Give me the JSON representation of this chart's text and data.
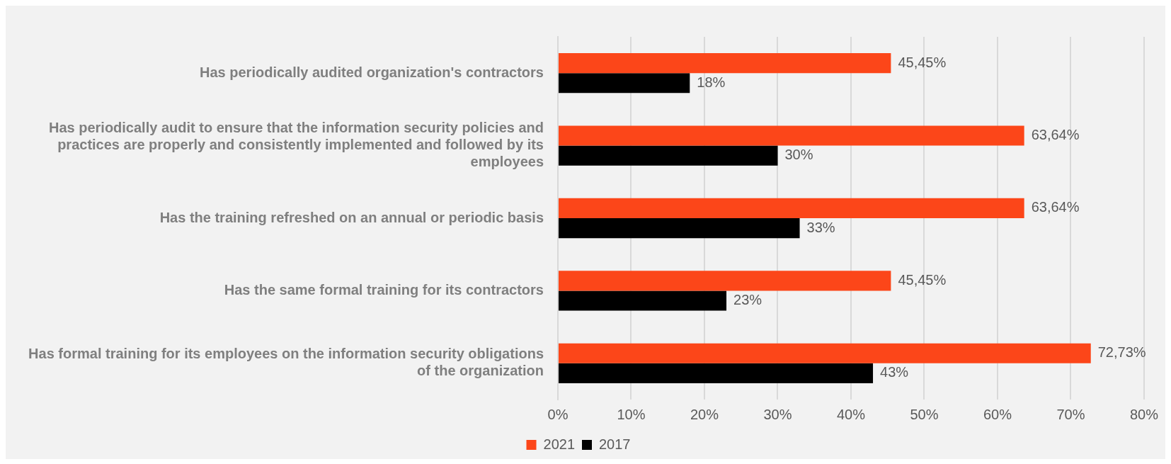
{
  "chart_data": {
    "type": "bar",
    "orientation": "horizontal",
    "categories": [
      "Has periodically audited organization's contractors",
      "Has periodically audit to ensure that the information security policies and practices are properly and consistently implemented and followed by its employees",
      "Has the training refreshed on an annual or periodic basis",
      "Has the same formal training for its contractors",
      "Has formal training for its employees on the information security obligations of the organization"
    ],
    "series": [
      {
        "name": "2021",
        "color": "#fc4619",
        "values": [
          45.45,
          63.64,
          63.64,
          45.45,
          72.73
        ],
        "value_labels": [
          "45,45%",
          "63,64%",
          "63,64%",
          "45,45%",
          "72,73%"
        ]
      },
      {
        "name": "2017",
        "color": "#000000",
        "values": [
          18,
          30,
          33,
          23,
          43
        ],
        "value_labels": [
          "18%",
          "30%",
          "33%",
          "23%",
          "43%"
        ]
      }
    ],
    "xlim": [
      0,
      80
    ],
    "xticks": [
      {
        "value": 0,
        "label": "0%"
      },
      {
        "value": 10,
        "label": "10%"
      },
      {
        "value": 20,
        "label": "20%"
      },
      {
        "value": 30,
        "label": "30%"
      },
      {
        "value": 40,
        "label": "40%"
      },
      {
        "value": 50,
        "label": "50%"
      },
      {
        "value": 60,
        "label": "60%"
      },
      {
        "value": 70,
        "label": "70%"
      },
      {
        "value": 80,
        "label": "80%"
      }
    ],
    "grid": "x",
    "legend": "bottom"
  }
}
